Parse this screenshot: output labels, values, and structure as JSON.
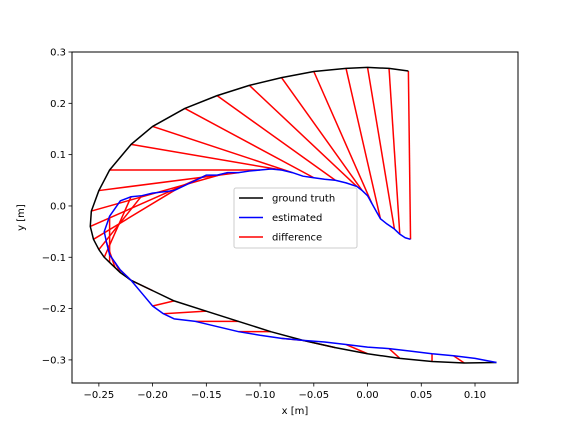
{
  "chart_data": {
    "type": "line",
    "title": "",
    "xlabel": "x [m]",
    "ylabel": "y [m]",
    "xlim": [
      -0.275,
      0.14
    ],
    "ylim": [
      -0.345,
      0.3
    ],
    "xticks": [
      -0.25,
      -0.2,
      -0.15,
      -0.1,
      -0.05,
      0.0,
      0.05,
      0.1
    ],
    "xtick_labels": [
      "−0.25",
      "−0.20",
      "−0.15",
      "−0.10",
      "−0.05",
      "0.00",
      "0.05",
      "0.10"
    ],
    "yticks": [
      -0.3,
      -0.2,
      -0.1,
      0.0,
      0.1,
      0.2,
      0.3
    ],
    "ytick_labels": [
      "−0.3",
      "−0.2",
      "−0.1",
      "0.0",
      "0.1",
      "0.2",
      "0.3"
    ],
    "grid": false,
    "legend_position": "center",
    "series": [
      {
        "name": "ground truth",
        "color": "#000000",
        "x": [
          0.038,
          0.02,
          0.0,
          -0.02,
          -0.05,
          -0.08,
          -0.11,
          -0.14,
          -0.17,
          -0.2,
          -0.22,
          -0.24,
          -0.25,
          -0.257,
          -0.258,
          -0.255,
          -0.25,
          -0.245,
          -0.24,
          -0.235,
          -0.23,
          -0.22,
          -0.2,
          -0.18,
          -0.15,
          -0.12,
          -0.09,
          -0.06,
          -0.03,
          0.0,
          0.03,
          0.06,
          0.09,
          0.12
        ],
        "y": [
          0.263,
          0.268,
          0.27,
          0.268,
          0.262,
          0.25,
          0.235,
          0.215,
          0.19,
          0.155,
          0.12,
          0.07,
          0.03,
          -0.01,
          -0.04,
          -0.065,
          -0.085,
          -0.1,
          -0.11,
          -0.12,
          -0.13,
          -0.145,
          -0.165,
          -0.185,
          -0.205,
          -0.225,
          -0.245,
          -0.262,
          -0.276,
          -0.288,
          -0.297,
          -0.303,
          -0.306,
          -0.305
        ]
      },
      {
        "name": "estimated",
        "color": "#0000ff",
        "x": [
          0.04,
          0.035,
          0.03,
          0.025,
          0.018,
          0.012,
          0.008,
          0.004,
          0.0,
          -0.005,
          -0.01,
          -0.02,
          -0.03,
          -0.04,
          -0.05,
          -0.06,
          -0.07,
          -0.08,
          -0.09,
          -0.1,
          -0.11,
          -0.12,
          -0.13,
          -0.14,
          -0.15,
          -0.16,
          -0.18,
          -0.2,
          -0.21,
          -0.22,
          -0.23,
          -0.24,
          -0.245,
          -0.243,
          -0.24,
          -0.235,
          -0.23,
          -0.225,
          -0.22,
          -0.21,
          -0.2,
          -0.19,
          -0.18,
          -0.16,
          -0.14,
          -0.12,
          -0.1,
          -0.08,
          -0.06,
          -0.04,
          -0.02,
          0.0,
          0.02,
          0.04,
          0.06,
          0.08,
          0.1,
          0.12
        ],
        "y": [
          -0.065,
          -0.062,
          -0.055,
          -0.045,
          -0.035,
          -0.025,
          -0.01,
          0.005,
          0.02,
          0.03,
          0.038,
          0.045,
          0.05,
          0.052,
          0.055,
          0.058,
          0.065,
          0.07,
          0.072,
          0.07,
          0.068,
          0.065,
          0.065,
          0.06,
          0.06,
          0.05,
          0.03,
          0.025,
          0.02,
          0.018,
          0.01,
          -0.02,
          -0.05,
          -0.07,
          -0.095,
          -0.11,
          -0.125,
          -0.135,
          -0.145,
          -0.17,
          -0.195,
          -0.21,
          -0.22,
          -0.225,
          -0.235,
          -0.245,
          -0.252,
          -0.258,
          -0.262,
          -0.265,
          -0.27,
          -0.275,
          -0.278,
          -0.283,
          -0.288,
          -0.292,
          -0.297,
          -0.305
        ]
      },
      {
        "name": "difference",
        "color": "#ff0000",
        "x": [
          0.038,
          0.02,
          0.0,
          -0.02,
          -0.05,
          -0.08,
          -0.11,
          -0.14,
          -0.17,
          -0.2,
          -0.22,
          -0.24,
          -0.25,
          -0.257,
          -0.258,
          -0.255,
          -0.25,
          -0.245,
          -0.24,
          -0.235,
          -0.23,
          -0.22,
          -0.2,
          -0.18,
          -0.15,
          -0.12,
          -0.09,
          -0.06,
          -0.03,
          0.0,
          0.03,
          0.06,
          0.09,
          0.12
        ],
        "y": [
          0.263,
          0.268,
          0.27,
          0.268,
          0.262,
          0.25,
          0.235,
          0.215,
          0.19,
          0.155,
          0.12,
          0.07,
          0.03,
          -0.01,
          -0.04,
          -0.065,
          -0.085,
          -0.1,
          -0.11,
          -0.12,
          -0.13,
          -0.145,
          -0.165,
          -0.185,
          -0.205,
          -0.225,
          -0.245,
          -0.262,
          -0.276,
          -0.288,
          -0.297,
          -0.303,
          -0.306,
          -0.305
        ]
      }
    ]
  }
}
